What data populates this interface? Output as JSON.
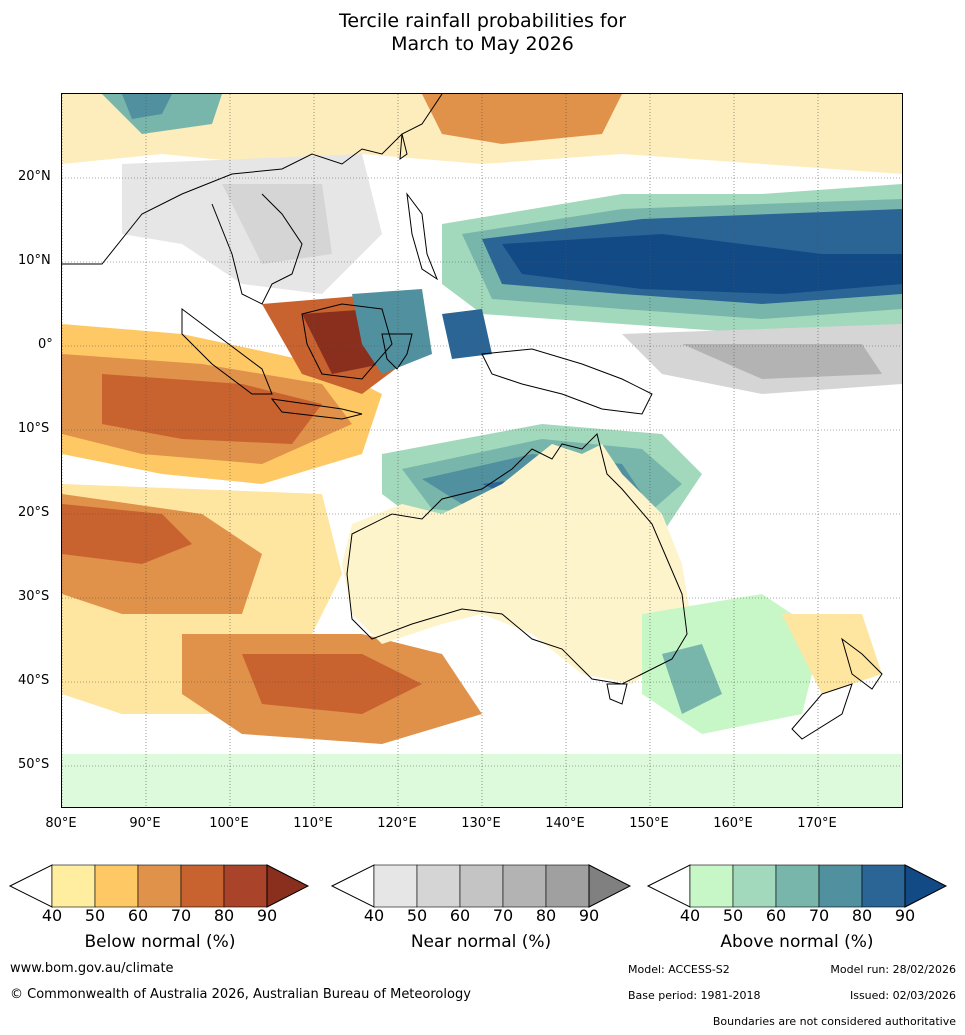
{
  "title": {
    "line1": "Tercile rainfall probabilities for",
    "line2": "March to May 2026"
  },
  "axes": {
    "lat_labels": [
      "20°N",
      "10°N",
      "0°",
      "10°S",
      "20°S",
      "30°S",
      "40°S",
      "50°S"
    ],
    "lon_labels": [
      "80°E",
      "90°E",
      "100°E",
      "110°E",
      "120°E",
      "130°E",
      "140°E",
      "150°E",
      "160°E",
      "170°E"
    ],
    "lat_range": [
      -55,
      30
    ],
    "lon_range": [
      80,
      180
    ]
  },
  "legends": {
    "below": {
      "title": "Below normal (%)",
      "ticks": [
        "40",
        "50",
        "60",
        "70",
        "80",
        "90"
      ],
      "colors": [
        "#ffeda0",
        "#fec965",
        "#e0914a",
        "#c8622f",
        "#a9432a",
        "#8a2f1e"
      ]
    },
    "near": {
      "title": "Near normal (%)",
      "ticks": [
        "40",
        "50",
        "60",
        "70",
        "80",
        "90"
      ],
      "colors": [
        "#e6e6e6",
        "#d5d5d5",
        "#c4c4c4",
        "#b3b3b3",
        "#a0a0a0",
        "#808080"
      ]
    },
    "above": {
      "title": "Above normal (%)",
      "ticks": [
        "40",
        "50",
        "60",
        "70",
        "80",
        "90"
      ],
      "colors": [
        "#c7f7c7",
        "#a2d9bc",
        "#78b6ab",
        "#51909f",
        "#2a6596",
        "#124a86"
      ]
    }
  },
  "footer": {
    "website": "www.bom.gov.au/climate",
    "copyright": "© Commonwealth of Australia 2026, Australian Bureau of Meteorology",
    "model": "Model: ACCESS-S2",
    "model_run": "Model run: 28/02/2026",
    "base_period": "Base period: 1981-2018",
    "issued": "Issued: 02/03/2026",
    "disclaimer": "Boundaries are not considered authoritative"
  }
}
